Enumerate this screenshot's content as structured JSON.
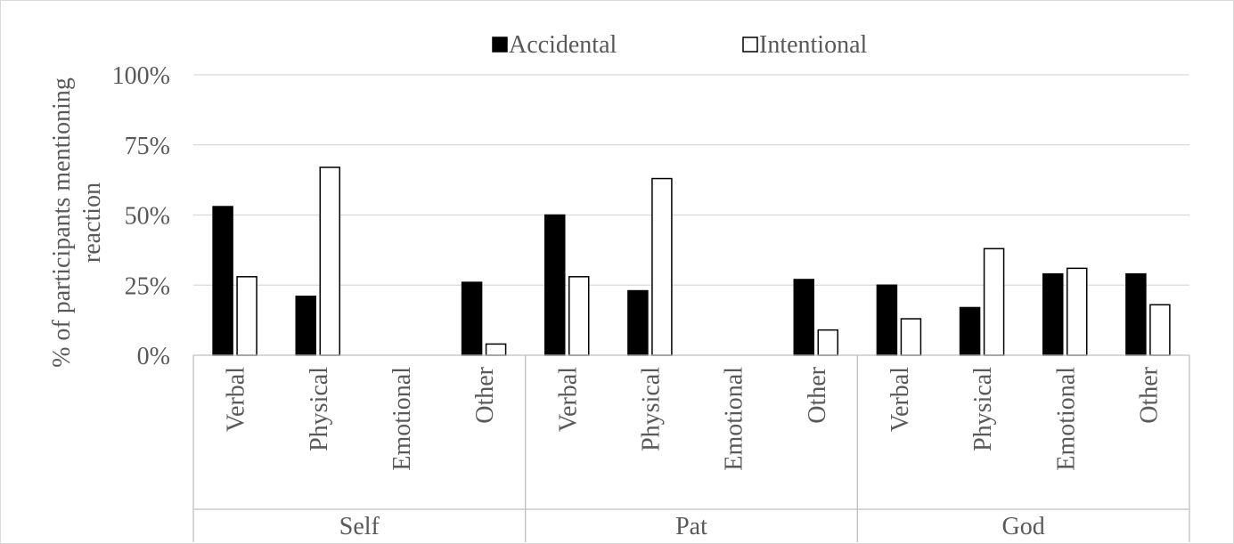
{
  "chart_data": {
    "type": "bar",
    "title": "",
    "xlabel": "",
    "ylabel_lines": [
      "% of participants mentioning",
      "reaction"
    ],
    "ylim": [
      0,
      100
    ],
    "y_ticks": [
      0,
      25,
      50,
      75,
      100
    ],
    "y_tick_labels": [
      "0%",
      "25%",
      "50%",
      "75%",
      "100%"
    ],
    "grid": true,
    "legend_position": "top-center",
    "groups": [
      {
        "label": "Self",
        "categories": [
          "Verbal",
          "Physical",
          "Emotional",
          "Other"
        ]
      },
      {
        "label": "Pat",
        "categories": [
          "Verbal",
          "Physical",
          "Emotional",
          "Other"
        ]
      },
      {
        "label": "God",
        "categories": [
          "Verbal",
          "Physical",
          "Emotional",
          "Other"
        ]
      }
    ],
    "series": [
      {
        "name": "Accidental",
        "color": "#000000",
        "values": [
          53,
          21,
          0,
          26,
          50,
          23,
          0,
          27,
          25,
          17,
          29,
          29
        ]
      },
      {
        "name": "Intentional",
        "color": "#ffffff",
        "values": [
          28,
          67,
          0,
          4,
          28,
          63,
          0,
          9,
          13,
          38,
          31,
          18
        ]
      }
    ]
  }
}
